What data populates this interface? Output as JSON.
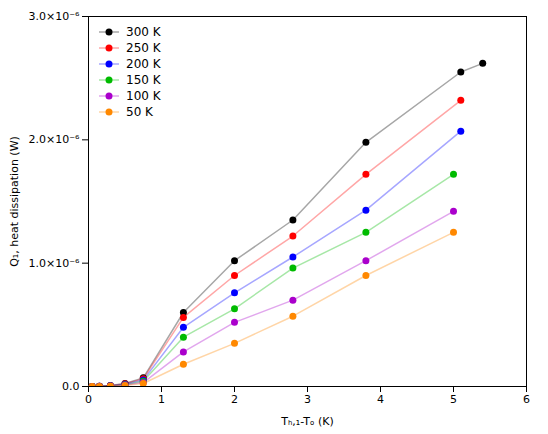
{
  "chart_data": {
    "type": "line",
    "marker": "circle",
    "line_style": "solid",
    "xlabel": "Tₕ,₁-Tₒ (K)",
    "ylabel": "Q₁, heat dissipation (W)",
    "xlim": [
      0,
      6
    ],
    "ylim": [
      0,
      3e-06
    ],
    "xticks": [
      0,
      1,
      2,
      3,
      4,
      5,
      6
    ],
    "yticks": [
      {
        "value": 0.0,
        "label": "0.0"
      },
      {
        "value": 1e-06,
        "label": "1.0×10⁻⁶"
      },
      {
        "value": 2e-06,
        "label": "2.0×10⁻⁶"
      },
      {
        "value": 3e-06,
        "label": "3.0×10⁻⁶"
      }
    ],
    "grid": false,
    "legend": "upper left",
    "series": [
      {
        "name": "300 K",
        "color": "#000000",
        "x": [
          0.05,
          0.15,
          0.3,
          0.5,
          0.75,
          1.3,
          2.0,
          2.8,
          3.8,
          5.1,
          5.4
        ],
        "values": [
          0.0,
          2e-09,
          8e-09,
          2.5e-08,
          7e-08,
          6e-07,
          1.02e-06,
          1.35e-06,
          1.98e-06,
          2.55e-06,
          2.62e-06
        ]
      },
      {
        "name": "250 K",
        "color": "#ff0000",
        "x": [
          0.05,
          0.15,
          0.3,
          0.5,
          0.75,
          1.3,
          2.0,
          2.8,
          3.8,
          5.1
        ],
        "values": [
          0.0,
          2e-09,
          7e-09,
          2.2e-08,
          6.2e-08,
          5.6e-07,
          9e-07,
          1.22e-06,
          1.72e-06,
          2.32e-06
        ]
      },
      {
        "name": "200 K",
        "color": "#0000ff",
        "x": [
          0.05,
          0.15,
          0.3,
          0.5,
          0.75,
          1.3,
          2.0,
          2.8,
          3.8,
          5.1
        ],
        "values": [
          0.0,
          1.5e-09,
          6e-09,
          1.8e-08,
          5.2e-08,
          4.8e-07,
          7.6e-07,
          1.05e-06,
          1.43e-06,
          2.07e-06
        ]
      },
      {
        "name": "150 K",
        "color": "#00bb00",
        "x": [
          0.05,
          0.15,
          0.3,
          0.5,
          0.75,
          1.3,
          2.0,
          2.8,
          3.8,
          5.0
        ],
        "values": [
          0.0,
          1e-09,
          5e-09,
          1.5e-08,
          4.2e-08,
          4e-07,
          6.3e-07,
          9.6e-07,
          1.25e-06,
          1.72e-06
        ]
      },
      {
        "name": "100 K",
        "color": "#aa00cc",
        "x": [
          0.05,
          0.15,
          0.3,
          0.5,
          0.75,
          1.3,
          2.0,
          2.8,
          3.8,
          5.0
        ],
        "values": [
          0.0,
          1e-09,
          4e-09,
          1.2e-08,
          3.2e-08,
          2.8e-07,
          5.2e-07,
          7e-07,
          1.02e-06,
          1.42e-06
        ]
      },
      {
        "name": "50 K",
        "color": "#ff8800",
        "x": [
          0.05,
          0.15,
          0.3,
          0.5,
          0.75,
          1.3,
          2.0,
          2.8,
          3.8,
          5.0
        ],
        "values": [
          0.0,
          8e-10,
          3e-09,
          9e-09,
          2.4e-08,
          1.8e-07,
          3.5e-07,
          5.7e-07,
          9e-07,
          1.25e-06
        ]
      }
    ]
  }
}
